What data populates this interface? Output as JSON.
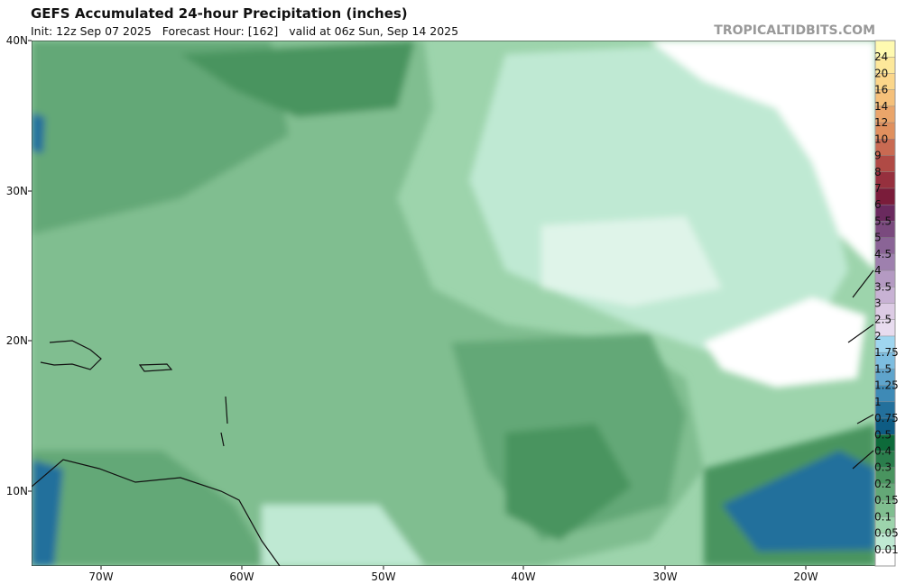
{
  "header": {
    "title": "GEFS Accumulated 24-hour Precipitation (inches)",
    "subtitle": "Init: 12z Sep 07 2025   Forecast Hour: [162]   valid at 06z Sun, Sep 14 2025",
    "watermark": "TROPICALTIDBITS.COM"
  },
  "map": {
    "lat_labels": [
      "40N",
      "30N",
      "20N",
      "10N"
    ],
    "lon_labels": [
      "70W",
      "60W",
      "50W",
      "40W",
      "30W",
      "20W"
    ]
  },
  "colorbar": {
    "labels": [
      "24",
      "20",
      "16",
      "14",
      "12",
      "10",
      "9",
      "8",
      "7",
      "6",
      "5.5",
      "5",
      "4.5",
      "4",
      "3.5",
      "3",
      "2.5",
      "2",
      "1.75",
      "1.5",
      "1.25",
      "1",
      "0.75",
      "0.5",
      "0.4",
      "0.3",
      "0.2",
      "0.15",
      "0.1",
      "0.05",
      "0.01"
    ]
  }
}
